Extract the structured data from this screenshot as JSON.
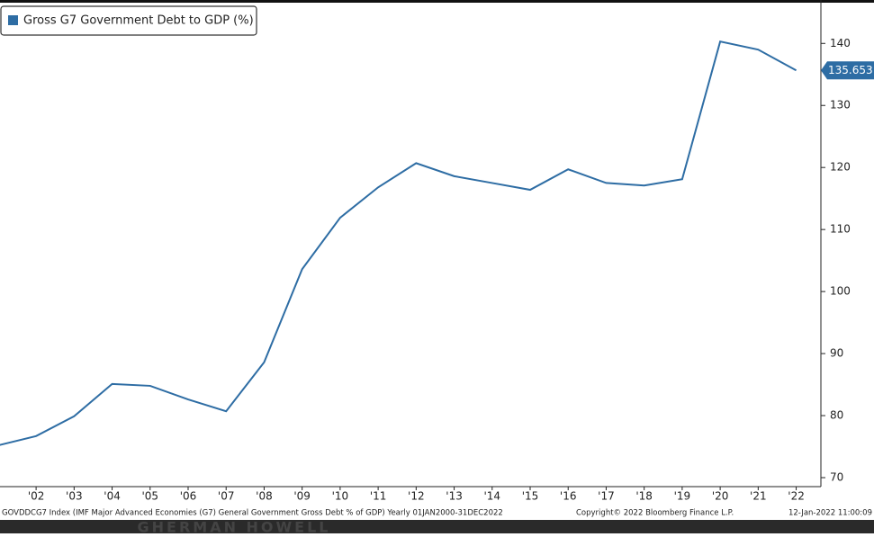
{
  "chart_data": {
    "type": "line",
    "legend": "Gross G7 Government Debt to GDP (%)",
    "legend_position": "upper-left",
    "x": [
      2001,
      2002,
      2003,
      2004,
      2005,
      2006,
      2007,
      2008,
      2009,
      2010,
      2011,
      2012,
      2013,
      2014,
      2015,
      2016,
      2017,
      2018,
      2019,
      2020,
      2021,
      2022
    ],
    "series": [
      {
        "name": "Gross G7 Government Debt to GDP (%)",
        "color": "#2e6da4",
        "values": [
          75.2,
          76.7,
          79.9,
          85.1,
          84.8,
          82.6,
          80.7,
          88.6,
          103.6,
          111.9,
          116.8,
          120.7,
          118.6,
          117.5,
          116.4,
          119.7,
          117.5,
          117.1,
          118.1,
          140.3,
          139.0,
          135.653
        ]
      }
    ],
    "xlim": [
      2001.05,
      2022.65
    ],
    "xticks": [
      {
        "value": 2002,
        "label": "'02"
      },
      {
        "value": 2003,
        "label": "'03"
      },
      {
        "value": 2004,
        "label": "'04"
      },
      {
        "value": 2005,
        "label": "'05"
      },
      {
        "value": 2006,
        "label": "'06"
      },
      {
        "value": 2007,
        "label": "'07"
      },
      {
        "value": 2008,
        "label": "'08"
      },
      {
        "value": 2009,
        "label": "'09"
      },
      {
        "value": 2010,
        "label": "'10"
      },
      {
        "value": 2011,
        "label": "'11"
      },
      {
        "value": 2012,
        "label": "'12"
      },
      {
        "value": 2013,
        "label": "'13"
      },
      {
        "value": 2014,
        "label": "'14"
      },
      {
        "value": 2015,
        "label": "'15"
      },
      {
        "value": 2016,
        "label": "'16"
      },
      {
        "value": 2017,
        "label": "'17"
      },
      {
        "value": 2018,
        "label": "'18"
      },
      {
        "value": 2019,
        "label": "'19"
      },
      {
        "value": 2020,
        "label": "'20"
      },
      {
        "value": 2021,
        "label": "'21"
      },
      {
        "value": 2022,
        "label": "'22"
      }
    ],
    "ylim": [
      68.55,
      147
    ],
    "yticks": [
      70,
      80,
      90,
      100,
      110,
      120,
      130,
      140
    ],
    "y_axis_side": "right",
    "footer_source": "GOVDDCG7 Index (IMF Major Advanced Economies (G7) General Government Gross Debt % of GDP)  Yearly 01JAN2000-31DEC2022",
    "footer_copyright": "Copyright© 2022 Bloomberg Finance L.P.",
    "footer_timestamp": "12-Jan-2022 11:00:09",
    "watermark": "GHERMAN HOWELL"
  }
}
